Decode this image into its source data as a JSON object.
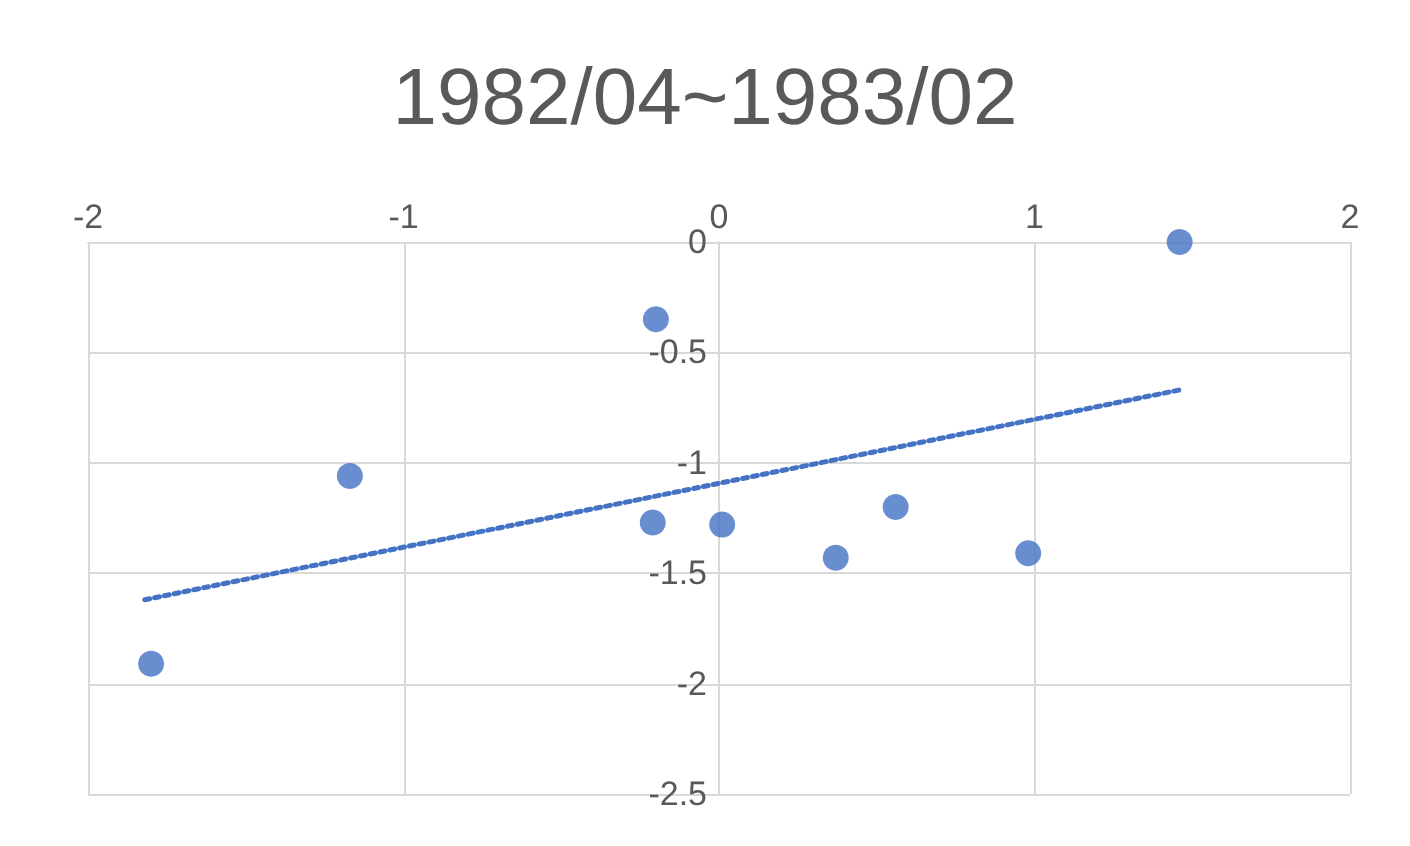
{
  "chart_data": {
    "type": "scatter",
    "title": "1982/04~1983/02",
    "xlim": [
      -2,
      2
    ],
    "xticks": [
      -2,
      -1,
      0,
      1,
      2
    ],
    "ylim": [
      -2.5,
      0
    ],
    "yticks": [
      -2.5,
      -2,
      -1.5,
      -1,
      -0.5,
      0
    ],
    "grid": true,
    "marker": "circle",
    "series": [
      {
        "color": "#4472c4",
        "x": [
          -1.8,
          -1.17,
          -0.2,
          -0.21,
          0.01,
          0.37,
          0.56,
          0.98,
          1.46
        ],
        "values": [
          -1.91,
          -1.06,
          -0.35,
          -1.27,
          -1.28,
          -1.43,
          -1.2,
          -1.41,
          0
        ]
      },
      {
        "type": "line",
        "color": "#4472c4",
        "line_style": "dotted",
        "marker": "none",
        "x": [
          -1.82,
          1.46
        ],
        "values": [
          -1.62,
          -0.67
        ]
      }
    ]
  }
}
